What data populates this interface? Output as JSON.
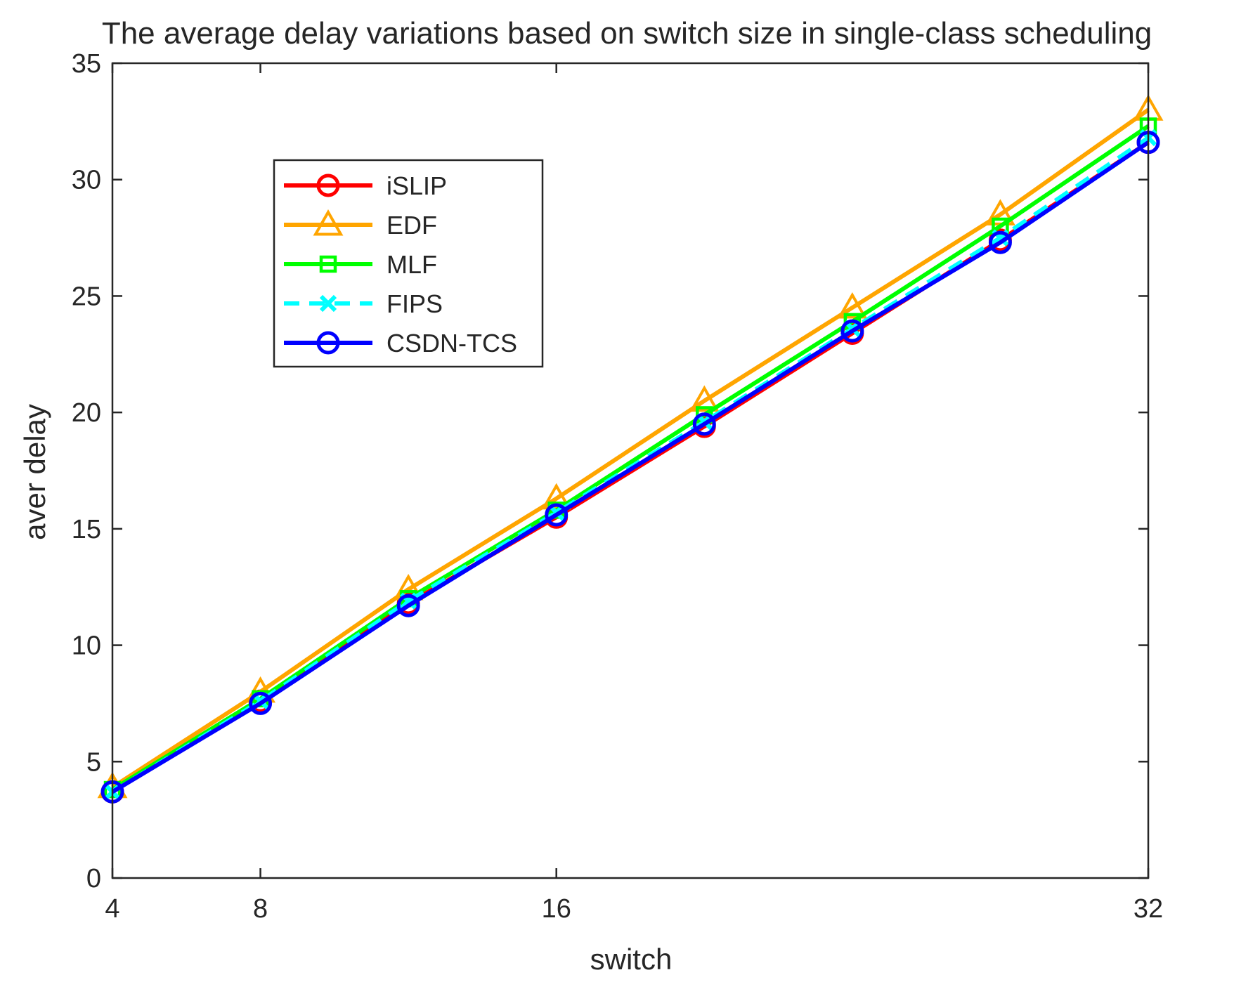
{
  "chart_data": {
    "type": "line",
    "title": "The average delay variations based on switch size in single-class scheduling",
    "xlabel": "switch",
    "ylabel": "aver delay",
    "xlim": [
      4,
      32
    ],
    "ylim": [
      0,
      35
    ],
    "xticks": [
      4,
      8,
      16,
      32
    ],
    "yticks": [
      0,
      5,
      10,
      15,
      20,
      25,
      30,
      35
    ],
    "x": [
      4,
      8,
      12,
      16,
      20,
      24,
      28,
      32
    ],
    "grid": false,
    "legend_position": "upper-left",
    "series": [
      {
        "name": "iSLIP",
        "color": "#ff0000",
        "dash": "solid",
        "marker": "circle",
        "values": [
          3.7,
          7.6,
          11.8,
          15.5,
          19.4,
          23.4,
          27.4,
          31.6
        ]
      },
      {
        "name": "EDF",
        "color": "#ffa500",
        "dash": "solid",
        "marker": "triangle",
        "values": [
          3.9,
          8.0,
          12.4,
          16.3,
          20.5,
          24.5,
          28.5,
          33.0
        ]
      },
      {
        "name": "MLF",
        "color": "#00ff00",
        "dash": "solid",
        "marker": "square",
        "values": [
          3.8,
          7.7,
          12.0,
          15.8,
          19.9,
          23.9,
          28.0,
          32.3
        ]
      },
      {
        "name": "FIPS",
        "color": "#00ffff",
        "dash": "dashed",
        "marker": "x",
        "values": [
          3.7,
          7.6,
          11.9,
          15.7,
          19.6,
          23.6,
          27.5,
          31.8
        ]
      },
      {
        "name": "CSDN-TCS",
        "color": "#0000ff",
        "dash": "solid",
        "marker": "circle",
        "values": [
          3.7,
          7.5,
          11.7,
          15.6,
          19.5,
          23.5,
          27.3,
          31.6
        ]
      }
    ]
  }
}
